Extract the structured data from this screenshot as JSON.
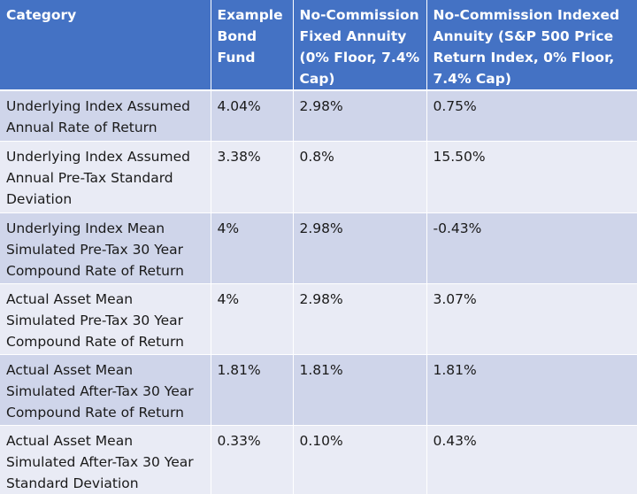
{
  "table": {
    "headers": [
      "Category",
      "Example Bond Fund",
      "No-Commission Fixed Annuity (0% Floor, 7.4% Cap)",
      "No-Commission Indexed Annuity (S&P 500 Price Return Index, 0% Floor, 7.4% Cap)"
    ],
    "rows": [
      [
        "Underlying Index Assumed Annual Rate of Return",
        "4.04%",
        "2.98%",
        "0.75%"
      ],
      [
        "Underlying Index Assumed Annual Pre-Tax Standard Deviation",
        "3.38%",
        "0.8%",
        "15.50%"
      ],
      [
        "Underlying Index Mean Simulated Pre-Tax 30 Year Compound Rate of Return",
        "4%",
        "2.98%",
        "-0.43%"
      ],
      [
        "Actual Asset Mean Simulated Pre-Tax 30 Year Compound Rate of Return",
        "4%",
        "2.98%",
        "3.07%"
      ],
      [
        "Actual Asset Mean Simulated After-Tax 30 Year Compound Rate of Return",
        "1.81%",
        "1.81%",
        "1.81%"
      ],
      [
        "Actual Asset Mean Simulated After-Tax 30 Year Standard Deviation",
        "0.33%",
        "0.10%",
        "0.43%"
      ]
    ]
  },
  "colors": {
    "header_bg": "#4472c4",
    "header_text": "#ffffff",
    "row_band_dark": "#cfd5ea",
    "row_band_light": "#e9ebf5"
  }
}
